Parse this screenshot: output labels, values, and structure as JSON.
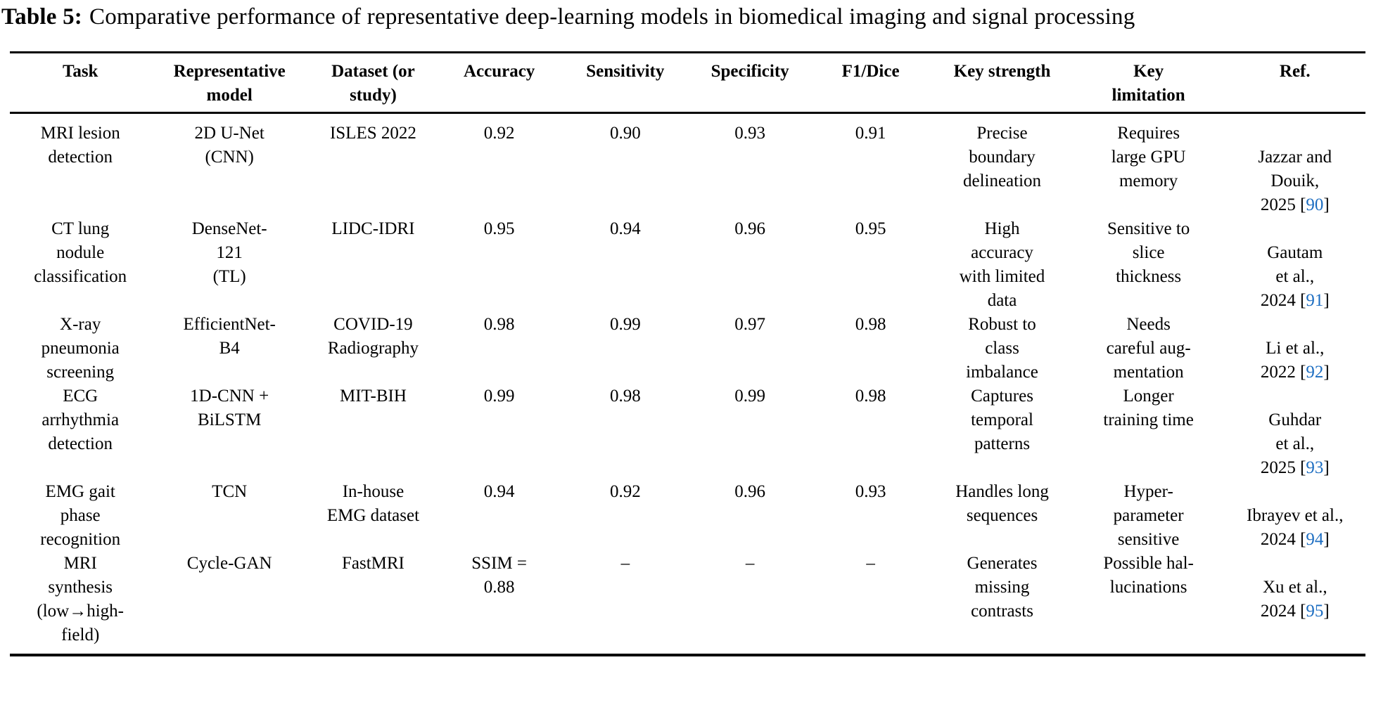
{
  "caption": {
    "label": "Table 5:",
    "text": "Comparative performance of representative deep-learning models in biomedical imaging and signal processing"
  },
  "colors": {
    "link_blue": "#1c6dc1",
    "text": "#000000",
    "background": "#ffffff",
    "rule": "#000000"
  },
  "table": {
    "columns": [
      "Task",
      "Representative\nmodel",
      "Dataset (or\nstudy)",
      "Accuracy",
      "Sensitivity",
      "Specificity",
      "F1/Dice",
      "Key strength",
      "Key\nlimitation",
      "Ref."
    ],
    "rows": [
      {
        "task": "MRI lesion\ndetection",
        "model": "2D U-Net\n(CNN)",
        "dataset": "ISLES 2022",
        "accuracy": "0.92",
        "sensitivity": "0.90",
        "specificity": "0.93",
        "f1_dice": "0.91",
        "key_strength": "Precise\nboundary\ndelineation",
        "key_limitation": "Requires\nlarge GPU\nmemory",
        "ref_pre": "Jazzar and\nDouik,\n2025 ",
        "ref_number": "90"
      },
      {
        "task": "CT lung\nnodule\nclassification",
        "model": "DenseNet-\n121\n(TL)",
        "dataset": "LIDC-IDRI",
        "accuracy": "0.95",
        "sensitivity": "0.94",
        "specificity": "0.96",
        "f1_dice": "0.95",
        "key_strength": "High\naccuracy\nwith limited\ndata",
        "key_limitation": "Sensitive to\nslice\nthickness",
        "ref_pre": "Gautam\net al.,\n2024 ",
        "ref_number": "91"
      },
      {
        "task": "X-ray\npneumonia\nscreening",
        "model": "EfficientNet-\nB4",
        "dataset": "COVID-19\nRadiography",
        "accuracy": "0.98",
        "sensitivity": "0.99",
        "specificity": "0.97",
        "f1_dice": "0.98",
        "key_strength": "Robust to\nclass\nimbalance",
        "key_limitation": "Needs\ncareful aug-\nmentation",
        "ref_pre": "Li et al.,\n2022 ",
        "ref_number": "92"
      },
      {
        "task": "ECG\narrhythmia\ndetection",
        "model": "1D-CNN +\nBiLSTM",
        "dataset": "MIT-BIH",
        "accuracy": "0.99",
        "sensitivity": "0.98",
        "specificity": "0.99",
        "f1_dice": "0.98",
        "key_strength": "Captures\ntemporal\npatterns",
        "key_limitation": "Longer\ntraining time",
        "ref_pre": "Guhdar\net al.,\n2025 ",
        "ref_number": "93"
      },
      {
        "task": "EMG gait\nphase\nrecognition",
        "model": "TCN",
        "dataset": "In-house\nEMG dataset",
        "accuracy": "0.94",
        "sensitivity": "0.92",
        "specificity": "0.96",
        "f1_dice": "0.93",
        "key_strength": "Handles long\nsequences",
        "key_limitation": "Hyper-\nparameter\nsensitive",
        "ref_pre": "Ibrayev et al.,\n2024 ",
        "ref_number": "94"
      },
      {
        "task": "MRI\nsynthesis\n(low→high-\nfield)",
        "model": "Cycle-GAN",
        "dataset": "FastMRI",
        "accuracy": "SSIM =\n0.88",
        "sensitivity": "–",
        "specificity": "–",
        "f1_dice": "–",
        "key_strength": "Generates\nmissing\ncontrasts",
        "key_limitation": "Possible hal-\nlucinations",
        "ref_pre": "Xu et al.,\n2024 ",
        "ref_number": "95"
      }
    ],
    "column_widths_pct": [
      10.4,
      11.6,
      9.6,
      9.0,
      9.6,
      8.8,
      9.0,
      10.4,
      11.2,
      10.4
    ]
  }
}
